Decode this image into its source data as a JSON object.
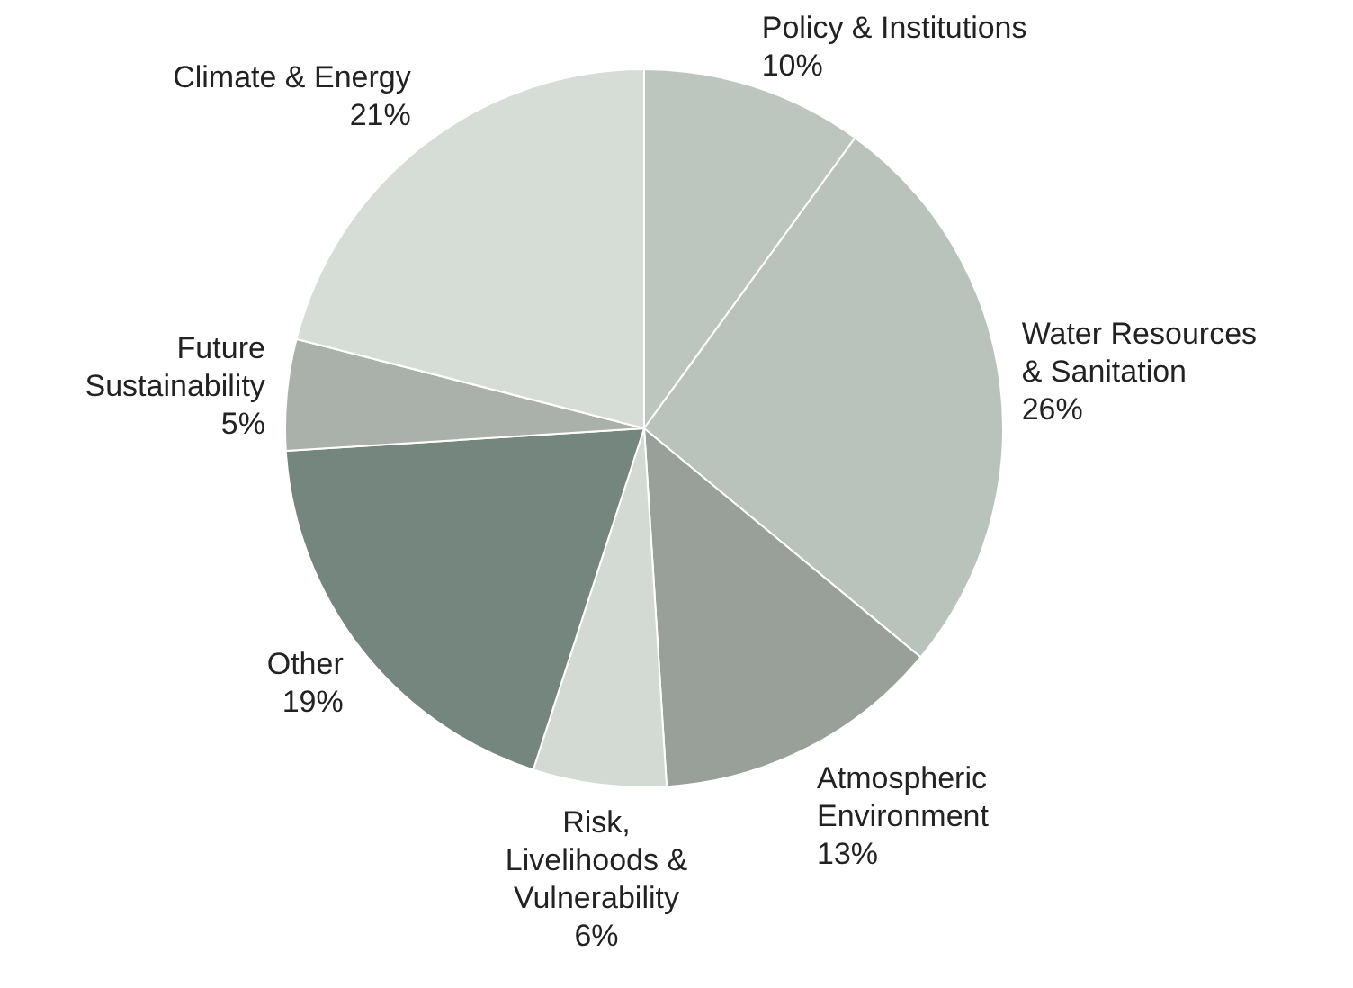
{
  "chart_data": {
    "type": "pie",
    "categories": [
      "Policy & Institutions",
      "Water Resources\n& Sanitation",
      "Atmospheric\nEnvironment",
      "Risk,\nLivelihoods &\nVulnerability",
      "Other",
      "Future\nSustainability",
      "Climate & Energy"
    ],
    "values": [
      10,
      26,
      13,
      6,
      19,
      5,
      21
    ],
    "colors": [
      "#bdc6be",
      "#bac3bb",
      "#98a099",
      "#d3dad4",
      "#74867d",
      "#a9b1aa",
      "#d6ddd7"
    ],
    "value_labels": [
      "10%",
      "26%",
      "13%",
      "6%",
      "19%",
      "5%",
      "21%"
    ],
    "legend": false
  }
}
